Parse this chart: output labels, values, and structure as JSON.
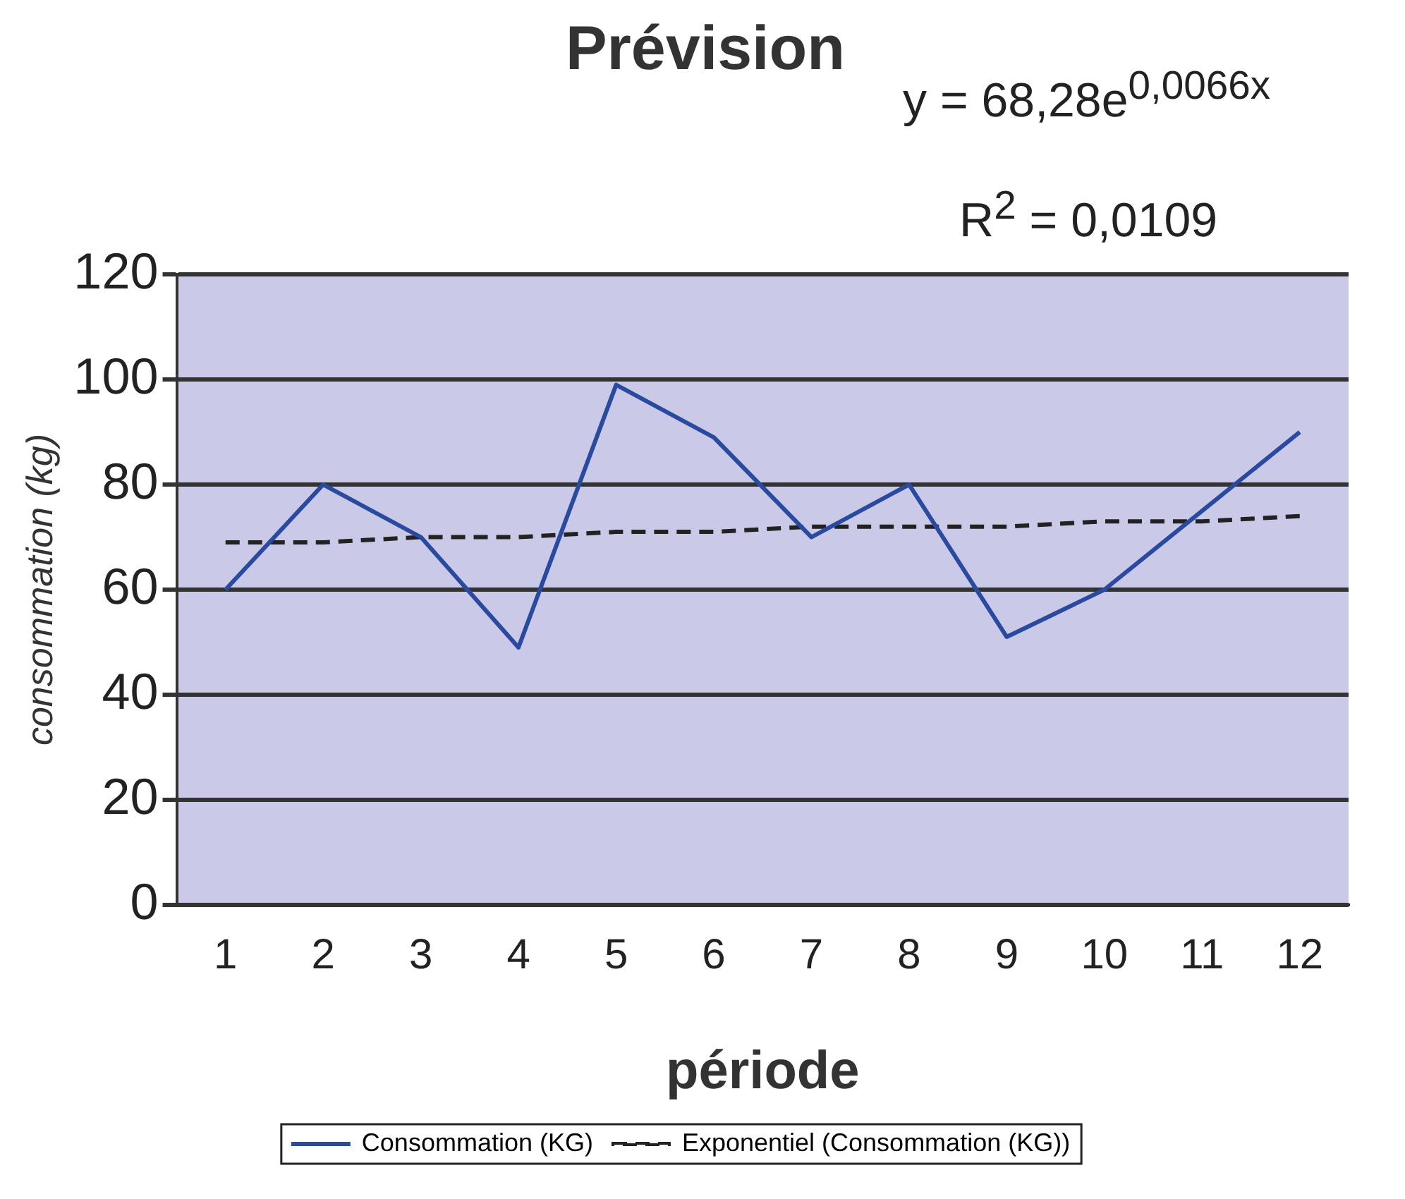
{
  "chart_data": {
    "type": "line",
    "title": "Prévision",
    "xlabel": "période",
    "ylabel": "consommation (kg)",
    "annotations": [
      "y = 68,28e$^{0,0066x}$",
      "R$^{2}$ = 0,0109"
    ],
    "categories": [
      "1",
      "2",
      "3",
      "4",
      "5",
      "6",
      "7",
      "8",
      "9",
      "10",
      "11",
      "12"
    ],
    "series": [
      {
        "name": "Consommation (KG)",
        "color": "#2a4aa0",
        "values": [
          60,
          80,
          70,
          49,
          99,
          89,
          70,
          80,
          51,
          60,
          75,
          90
        ],
        "line_style": "solid"
      },
      {
        "name": "Exponentiel (Consommation (KG))",
        "color": "#222222",
        "values": [
          69,
          69,
          70,
          70,
          71,
          71,
          72,
          72,
          72,
          73,
          73,
          74
        ],
        "line_style": "dashed"
      }
    ],
    "ylim": [
      0,
      120
    ],
    "yticks": [
      0,
      20,
      40,
      60,
      80,
      100,
      120
    ],
    "grid": "y",
    "legend": "bottom",
    "marker": "none"
  }
}
